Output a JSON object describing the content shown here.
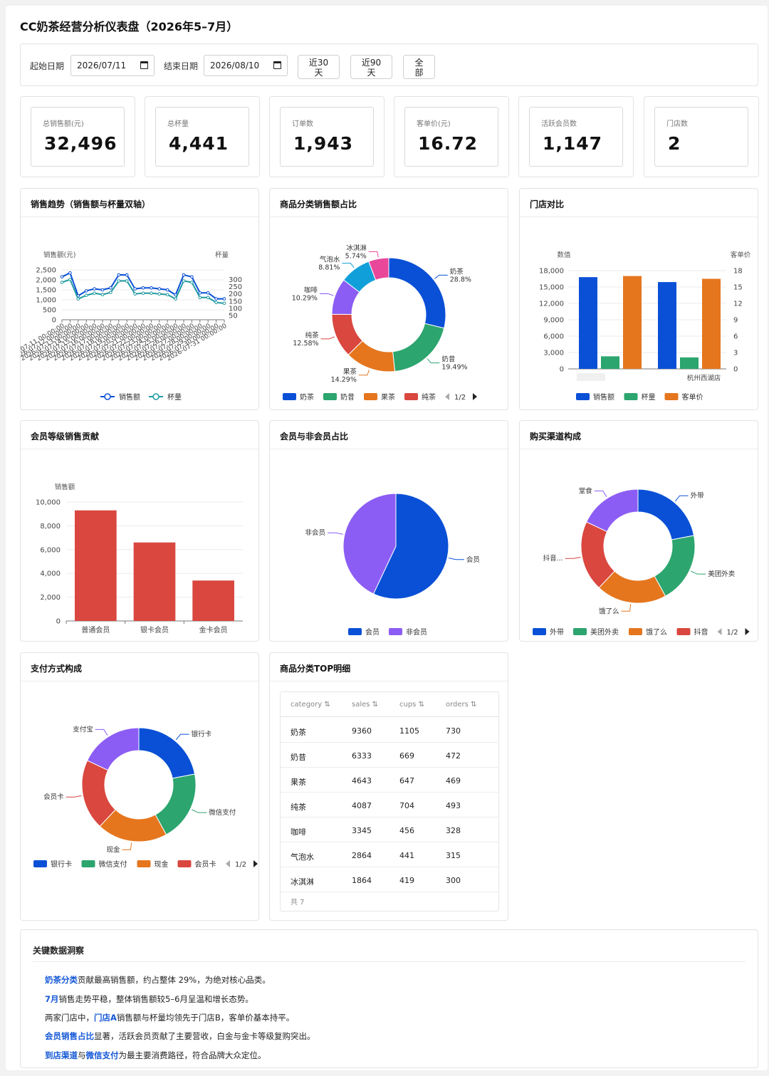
{
  "title": "CC奶茶经营分析仪表盘（2026年5–7月）",
  "filters": {
    "start_label": "起始日期",
    "start_value": "2026/07/11",
    "end_label": "结束日期",
    "end_value": "2026/08/10",
    "quick": [
      {
        "line1": "近30",
        "line2": "天"
      },
      {
        "line1": "近90",
        "line2": "天"
      },
      {
        "line1": "全",
        "line2": "部"
      }
    ]
  },
  "kpis": [
    {
      "label": "总销售额(元)",
      "value": "32,496"
    },
    {
      "label": "总杯量",
      "value": "4,441"
    },
    {
      "label": "订单数",
      "value": "1,943"
    },
    {
      "label": "客单价(元)",
      "value": "16.72"
    },
    {
      "label": "活跃会员数",
      "value": "1,147"
    },
    {
      "label": "门店数",
      "value": "2"
    }
  ],
  "panels": {
    "trend": "销售趋势（销售额与杯量双轴）",
    "category": "商品分类销售额占比",
    "store": "门店对比",
    "level": "会员等级销售贡献",
    "member": "会员与非会员占比",
    "channel": "购买渠道构成",
    "payment": "支付方式构成",
    "top": "商品分类TOP明细"
  },
  "colors": {
    "blue": "#0a50d6",
    "green": "#2ca56e",
    "orange": "#e5761e",
    "red": "#d9473f",
    "purple": "#8c5df4",
    "cyan": "#109fd9",
    "pink": "#e8479a",
    "teal": "#1f9aa0"
  },
  "chart_data": [
    {
      "id": "trend",
      "type": "line",
      "ylabel": "销售额(元)",
      "y2label": "杯量",
      "y_ticks": [
        "0",
        "500",
        "1,000",
        "1,500",
        "2,000",
        "2,500"
      ],
      "y2_ticks": [
        "50",
        "100",
        "150",
        "200",
        "250",
        "300"
      ],
      "ylim": [
        0,
        2500
      ],
      "y2lim": [
        50,
        300
      ],
      "x": [
        "2026-07-11",
        "2026-07-12",
        "2026-07-13",
        "2026-07-14",
        "2026-07-15",
        "2026-07-16",
        "2026-07-17",
        "2026-07-18",
        "2026-07-19",
        "2026-07-20",
        "2026-07-21",
        "2026-07-22",
        "2026-07-23",
        "2026-07-24",
        "2026-07-25",
        "2026-07-26",
        "2026-07-27",
        "2026-07-28",
        "2026-07-29",
        "2026-07-30",
        "2026-07-31"
      ],
      "x_tick_labels": [
        "2026-07-11",
        "2026-07-12",
        "2026-07-13",
        "2026-07-14",
        "2026-07-15",
        "2026-07-16",
        "2026-07-17",
        "2026-07-18",
        "2026-07-19",
        "2026-07-20",
        "2026-07-21",
        "2026-07-22",
        "2026-07-23",
        "2026-07-24",
        "2026-07-25",
        "2026-07-26",
        "2026-07-27",
        "2026-07-28",
        "2026-07-29",
        "2026-07-30",
        "2026-07-31"
      ],
      "series": [
        {
          "name": "销售额",
          "values": [
            2150,
            2350,
            1200,
            1450,
            1550,
            1500,
            1600,
            2250,
            2250,
            1550,
            1600,
            1600,
            1550,
            1500,
            1250,
            2250,
            2150,
            1350,
            1350,
            1050,
            1050
          ]
        },
        {
          "name": "杯量",
          "values": [
            280,
            300,
            165,
            190,
            205,
            195,
            210,
            290,
            290,
            200,
            205,
            205,
            200,
            195,
            165,
            290,
            280,
            175,
            175,
            140,
            135
          ]
        }
      ],
      "legend": [
        "销售额",
        "杯量"
      ]
    },
    {
      "id": "category",
      "type": "pie",
      "labels": [
        "奶茶",
        "奶昔",
        "果茶",
        "纯茶",
        "咖啡",
        "气泡水",
        "冰淇淋"
      ],
      "values": [
        28.8,
        19.49,
        14.29,
        12.58,
        10.29,
        8.81,
        5.74
      ],
      "display": [
        "28.8%",
        "19.49%",
        "14.29%",
        "12.58%",
        "10.29%",
        "8.81%",
        "5.74%"
      ],
      "legend": [
        "奶茶",
        "奶昔",
        "果茶",
        "纯茶"
      ],
      "legend_page": "1/2"
    },
    {
      "id": "store",
      "type": "bar",
      "ylabel": "数值",
      "y2label": "客单价",
      "y_ticks": [
        "0",
        "3,000",
        "6,000",
        "9,000",
        "12,000",
        "15,000",
        "18,000"
      ],
      "y2_ticks": [
        "0",
        "3",
        "6",
        "9",
        "12",
        "15",
        "18"
      ],
      "ylim": [
        0,
        18000
      ],
      "y2lim": [
        0,
        18
      ],
      "categories": [
        "",
        "杭州西湖店"
      ],
      "series": [
        {
          "name": "销售额",
          "values": [
            16800,
            15900
          ]
        },
        {
          "name": "杯量",
          "values": [
            2300,
            2100
          ]
        },
        {
          "name": "客单价",
          "values": [
            17.0,
            16.5
          ]
        }
      ],
      "legend": [
        "销售额",
        "杯量",
        "客单价"
      ]
    },
    {
      "id": "level",
      "type": "bar",
      "ylabel": "销售额",
      "y_ticks": [
        "0",
        "2,000",
        "4,000",
        "6,000",
        "8,000",
        "10,000"
      ],
      "ylim": [
        0,
        10000
      ],
      "categories": [
        "普通会员",
        "银卡会员",
        "金卡会员"
      ],
      "values": [
        9300,
        6600,
        3400
      ]
    },
    {
      "id": "member",
      "type": "pie",
      "labels": [
        "会员",
        "非会员"
      ],
      "values": [
        57,
        43
      ],
      "legend": [
        "会员",
        "非会员"
      ]
    },
    {
      "id": "channel",
      "type": "pie",
      "labels": [
        "外带",
        "美团外卖",
        "饿了么",
        "抖音...",
        "堂食"
      ],
      "values": [
        22,
        20,
        20,
        20,
        18
      ],
      "legend": [
        "外带",
        "美团外卖",
        "饿了么",
        "抖音"
      ],
      "legend_page": "1/2"
    },
    {
      "id": "payment",
      "type": "pie",
      "labels": [
        "银行卡",
        "微信支付",
        "现金",
        "会员卡",
        "支付宝"
      ],
      "values": [
        22,
        20,
        20,
        20,
        18
      ],
      "legend": [
        "银行卡",
        "微信支付",
        "现金",
        "会员卡"
      ],
      "legend_page": "1/2"
    },
    {
      "id": "top",
      "type": "table",
      "columns": [
        "category ⇅",
        "sales ⇅",
        "cups ⇅",
        "orders ⇅"
      ],
      "rows": [
        [
          "奶茶",
          "9360",
          "1105",
          "730"
        ],
        [
          "奶昔",
          "6333",
          "669",
          "472"
        ],
        [
          "果茶",
          "4643",
          "647",
          "469"
        ],
        [
          "纯茶",
          "4087",
          "704",
          "493"
        ],
        [
          "咖啡",
          "3345",
          "456",
          "328"
        ],
        [
          "气泡水",
          "2864",
          "441",
          "315"
        ],
        [
          "冰淇淋",
          "1864",
          "419",
          "300"
        ]
      ],
      "footer": "共 7"
    }
  ],
  "insights": {
    "title": "关键数据洞察",
    "items": [
      {
        "hl": "奶茶分类",
        "rest": "贡献最高销售额，约占整体 29%，为绝对核心品类。"
      },
      {
        "hl": "7月",
        "rest": "销售走势平稳，整体销售额较5–6月呈温和增长态势。"
      },
      {
        "pre": "两家门店中，",
        "hl": "门店A",
        "rest": "销售额与杯量均领先于门店B，客单价基本持平。"
      },
      {
        "hl": "会员销售占比",
        "rest": "显著，活跃会员贡献了主要营收，白金与金卡等级复购突出。"
      },
      {
        "hl": "到店渠道",
        "mid": "与",
        "hl2": "微信支付",
        "rest": "为最主要消费路径，符合品牌大众定位。"
      }
    ]
  }
}
